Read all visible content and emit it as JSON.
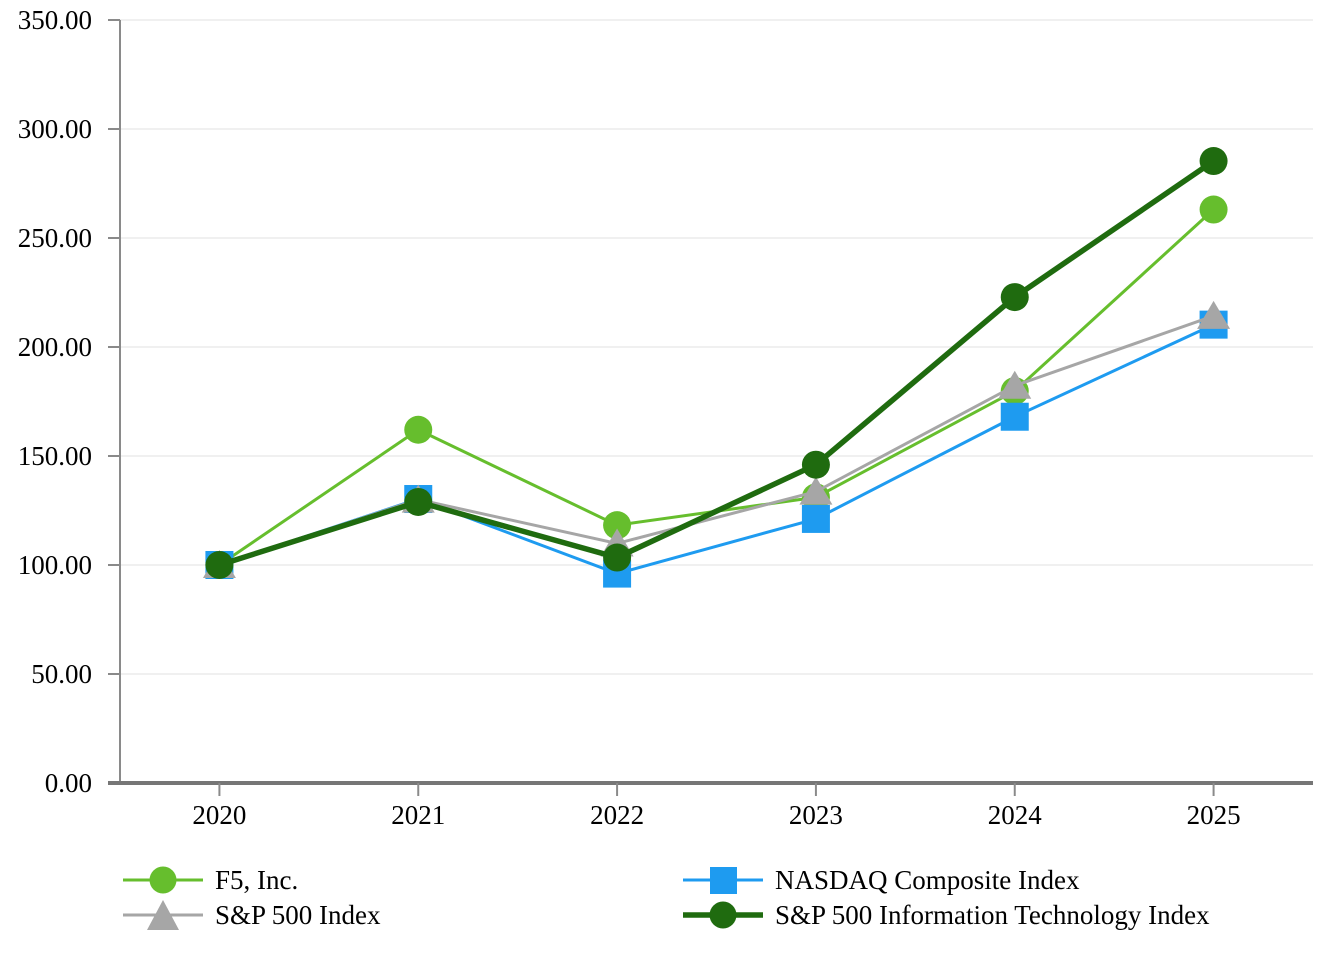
{
  "chart_data": {
    "type": "line",
    "title": "",
    "xlabel": "",
    "ylabel": "",
    "categories": [
      "2020",
      "2021",
      "2022",
      "2023",
      "2024",
      "2025"
    ],
    "y_axis": {
      "min": 0,
      "max": 350,
      "step": 50,
      "tick_labels": [
        "0.00",
        "50.00",
        "100.00",
        "150.00",
        "200.00",
        "250.00",
        "300.00",
        "350.00"
      ]
    },
    "grid": "horizontal",
    "legend_position": "bottom",
    "series": [
      {
        "name": "F5, Inc.",
        "color": "#66BE2D",
        "marker": "circle",
        "line_width": 3,
        "values": [
          100.0,
          162.04,
          118.27,
          131.07,
          179.8,
          263.07
        ]
      },
      {
        "name": "NASDAQ Composite Index",
        "color": "#1E9BF0",
        "marker": "square",
        "line_width": 3,
        "values": [
          100.0,
          130.27,
          96.06,
          121.14,
          168.01,
          210.26
        ]
      },
      {
        "name": "S&P 500 Index",
        "color": "#A6A6A6",
        "marker": "triangle",
        "line_width": 3,
        "values": [
          100.0,
          130.0,
          109.89,
          133.65,
          182.24,
          214.25
        ]
      },
      {
        "name": "S&P 500 Information Technology Index",
        "color": "#1F6B0F",
        "marker": "circle",
        "line_width": 5.5,
        "values": [
          100.0,
          128.91,
          103.42,
          146.0,
          222.9,
          285.3
        ]
      }
    ],
    "axis_colors": {
      "grid": "#ECECEC",
      "y_axis": "#8A8A8A",
      "x_axis": "#767676",
      "text": "#000000"
    }
  }
}
